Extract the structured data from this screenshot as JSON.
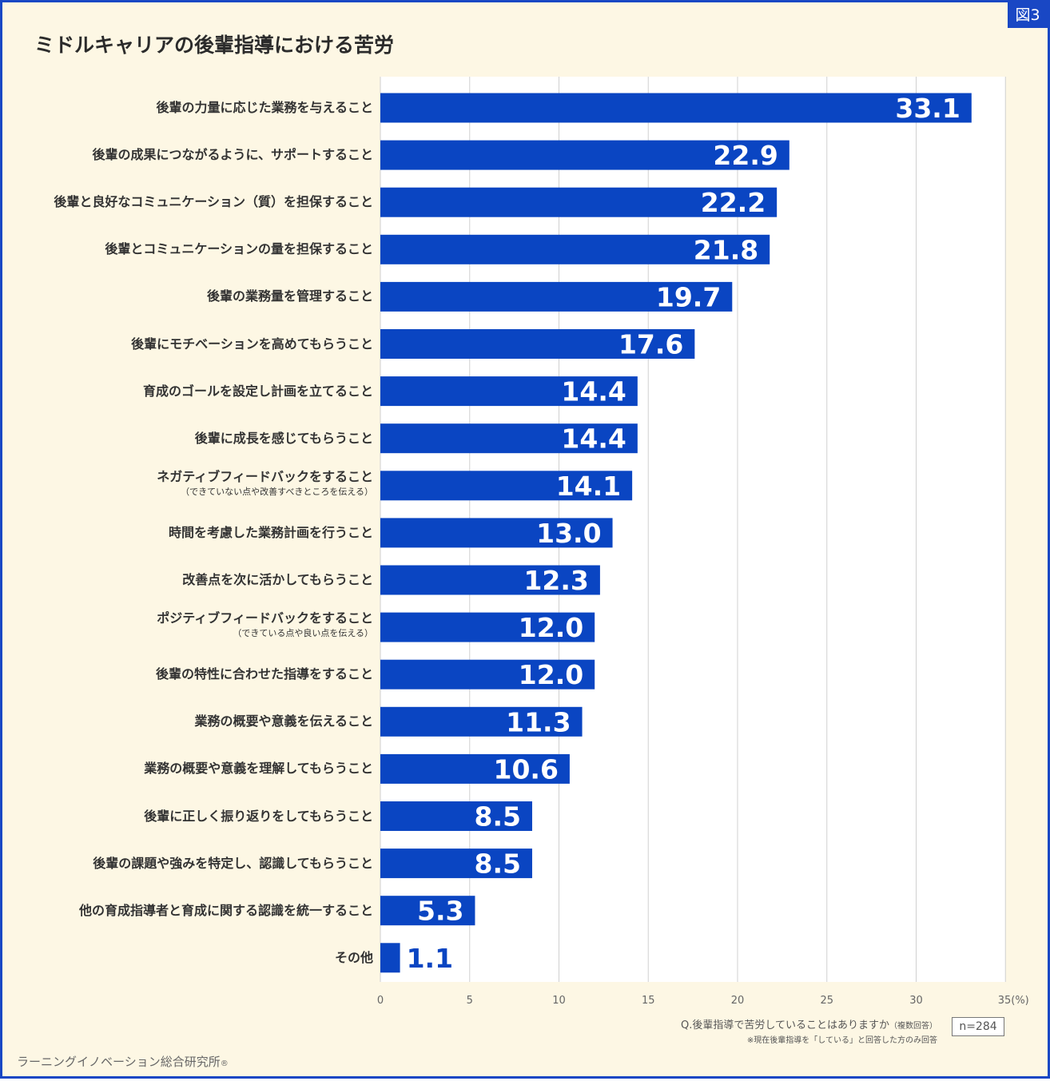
{
  "figure_badge": "図3",
  "chart_data": {
    "type": "bar",
    "orientation": "horizontal",
    "title": "ミドルキャリアの後輩指導における苦労",
    "categories": [
      {
        "label": "後輩の力量に応じた業務を与えること",
        "sub": ""
      },
      {
        "label": "後輩の成果につながるように、サポートすること",
        "sub": ""
      },
      {
        "label": "後輩と良好なコミュニケーション（質）を担保すること",
        "sub": ""
      },
      {
        "label": "後輩とコミュニケーションの量を担保すること",
        "sub": ""
      },
      {
        "label": "後輩の業務量を管理すること",
        "sub": ""
      },
      {
        "label": "後輩にモチベーションを高めてもらうこと",
        "sub": ""
      },
      {
        "label": "育成のゴールを設定し計画を立てること",
        "sub": ""
      },
      {
        "label": "後輩に成長を感じてもらうこと",
        "sub": ""
      },
      {
        "label": "ネガティブフィードバックをすること",
        "sub": "（できていない点や改善すべきところを伝える）"
      },
      {
        "label": "時間を考慮した業務計画を行うこと",
        "sub": ""
      },
      {
        "label": "改善点を次に活かしてもらうこと",
        "sub": ""
      },
      {
        "label": "ポジティブフィードバックをすること",
        "sub": "（できている点や良い点を伝える）"
      },
      {
        "label": "後輩の特性に合わせた指導をすること",
        "sub": ""
      },
      {
        "label": "業務の概要や意義を伝えること",
        "sub": ""
      },
      {
        "label": "業務の概要や意義を理解してもらうこと",
        "sub": ""
      },
      {
        "label": "後輩に正しく振り返りをしてもらうこと",
        "sub": ""
      },
      {
        "label": "後輩の課題や強みを特定し、認識してもらうこと",
        "sub": ""
      },
      {
        "label": "他の育成指導者と育成に関する認識を統一すること",
        "sub": ""
      },
      {
        "label": "その他",
        "sub": ""
      }
    ],
    "values": [
      33.1,
      22.9,
      22.2,
      21.8,
      19.7,
      17.6,
      14.4,
      14.4,
      14.1,
      13.0,
      12.3,
      12.0,
      12.0,
      11.3,
      10.6,
      8.5,
      8.5,
      5.3,
      1.1
    ],
    "value_labels": [
      "33.1",
      "22.9",
      "22.2",
      "21.8",
      "19.7",
      "17.6",
      "14.4",
      "14.4",
      "14.1",
      "13.0",
      "12.3",
      "12.0",
      "12.0",
      "11.3",
      "10.6",
      "8.5",
      "8.5",
      "5.3",
      "1.1"
    ],
    "xlim": [
      0,
      35
    ],
    "xticks": [
      "0",
      "5",
      "10",
      "15",
      "20",
      "25",
      "30",
      "35(%)"
    ],
    "grid": true,
    "bar_color": "#0a45c2"
  },
  "notes": {
    "question": "Q.後輩指導で苦労していることはありますか",
    "question_suffix": "（複数回答）",
    "sub": "※現在後輩指導を「している」と回答した方のみ回答",
    "n": "n=284"
  },
  "source": {
    "name": "ラーニングイノベーション総合研究所",
    "mark": "®"
  }
}
